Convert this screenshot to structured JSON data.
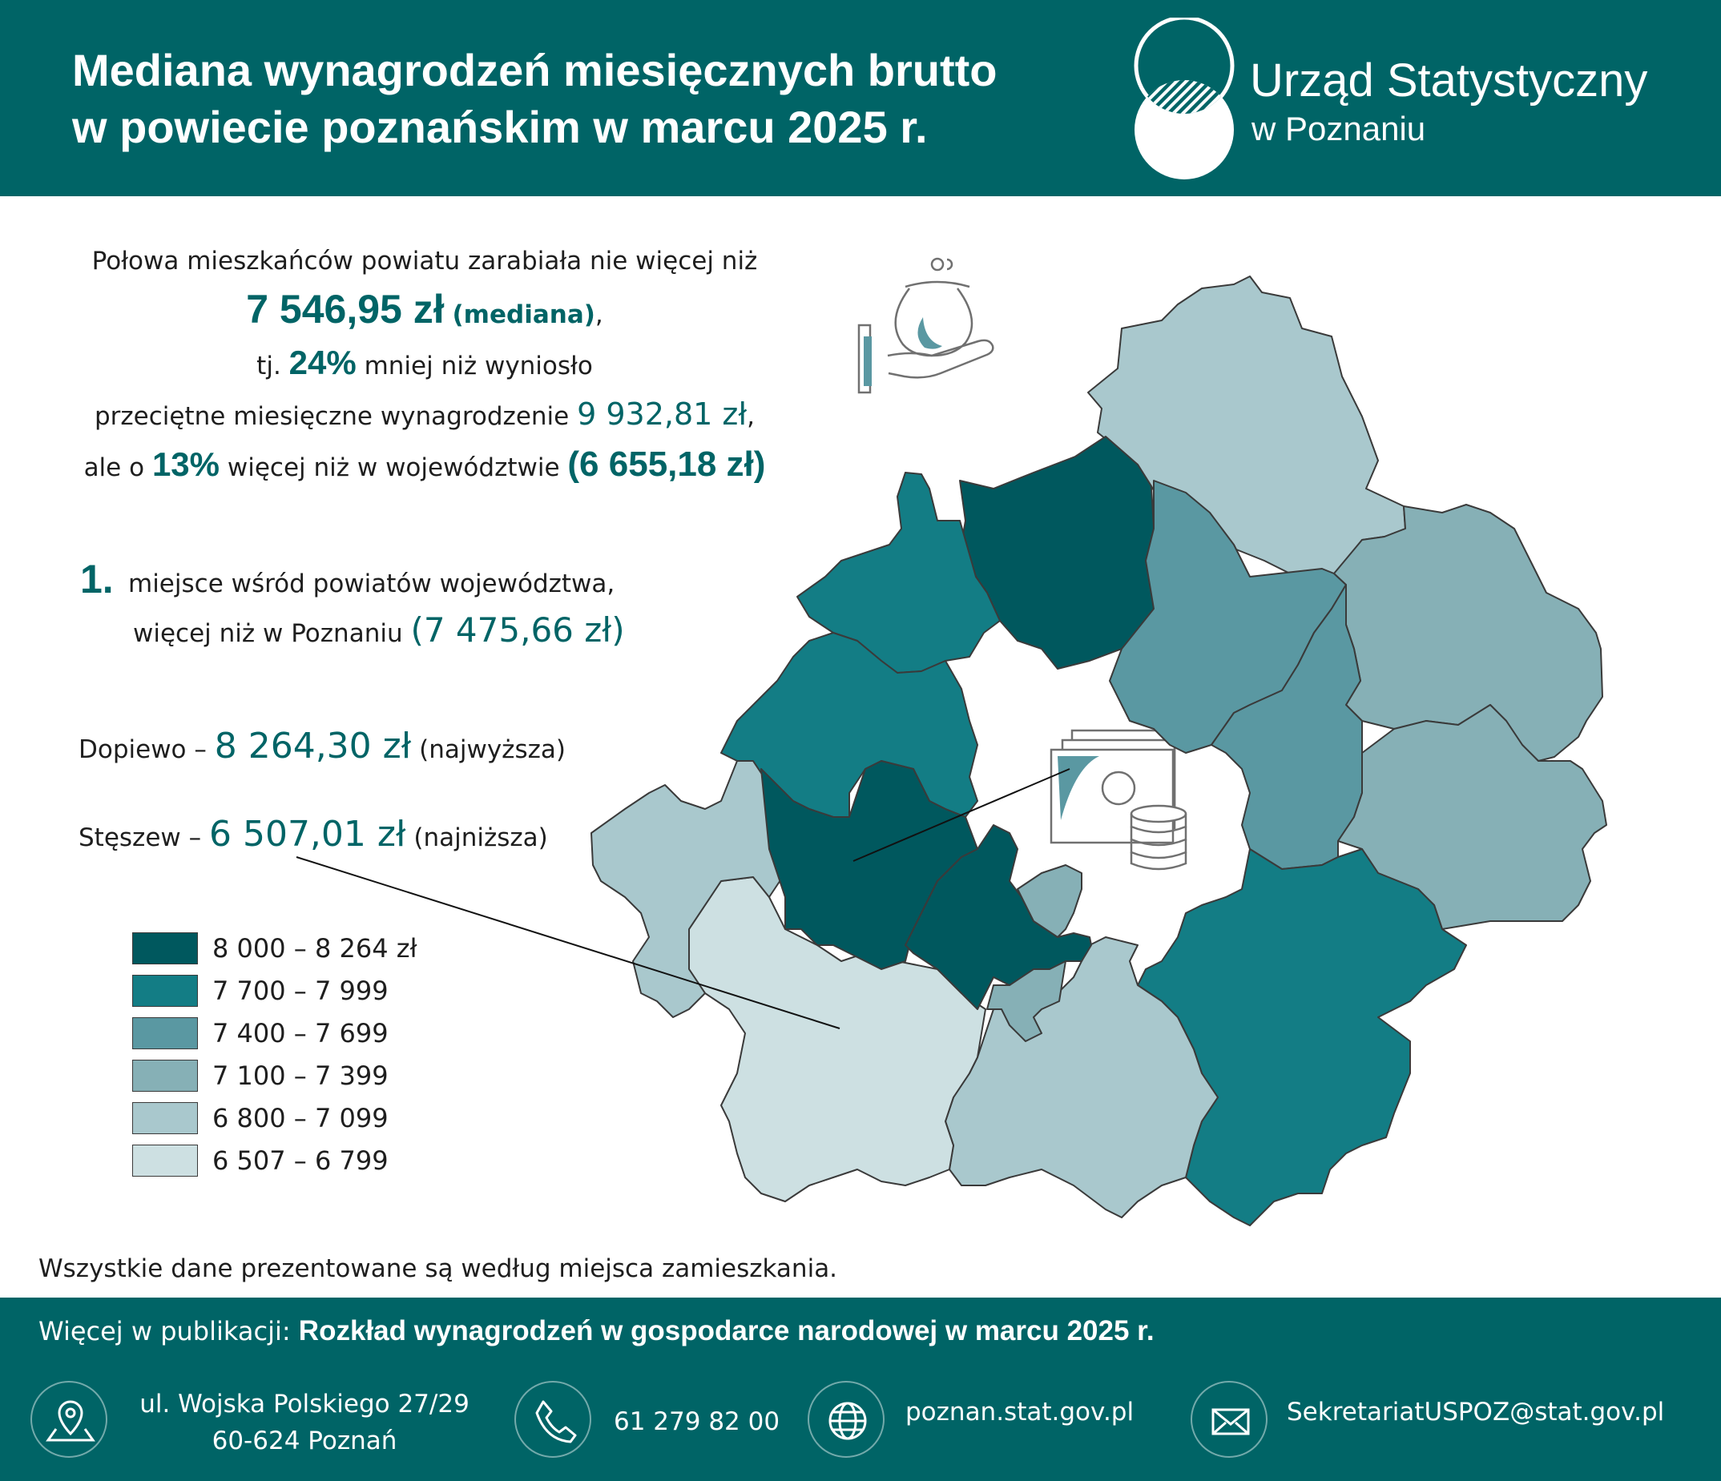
{
  "header": {
    "title_line1": "Mediana wynagrodzeń miesięcznych brutto",
    "title_line2": "w powiecie poznańskim w marcu 2025 r.",
    "org_name": "Urząd Statystyczny",
    "org_sub": "w Poznaniu"
  },
  "intro": {
    "line1": "Połowa mieszkańców powiatu zarabiała nie więcej niż",
    "median_value": "7 546,95 zł",
    "median_label": "(mediana)",
    "median_suffix": ",",
    "line3_pre": "tj.",
    "line3_pct": "24%",
    "line3_post": "mniej niż wyniosło",
    "line4_text": "przeciętne miesięczne wynagrodzenie",
    "line4_value": "9 932,81 zł",
    "line4_suffix": ",",
    "line5_pre": "ale o",
    "line5_pct": "13%",
    "line5_post": "więcej niż w województwie",
    "line5_value": "(6 655,18 zł)"
  },
  "rank": {
    "number": "1.",
    "line1": "miejsce wśród powiatów województwa,",
    "line2_text": "więcej niż w Poznaniu",
    "line2_value": "(7 475,66 zł)"
  },
  "callouts": {
    "highest": {
      "name": "Dopiewo –",
      "value": "8 264,30 zł",
      "note": "(najwyższa)"
    },
    "lowest": {
      "name": "Stęszew –",
      "value": "6 507,01 zł",
      "note": "(najniższa)"
    }
  },
  "legend": [
    {
      "label": "8 000 – 8 264 zł",
      "color": "#00585e"
    },
    {
      "label": "7 700 – 7 999",
      "color": "#137d85"
    },
    {
      "label": "7 400 – 7 699",
      "color": "#5a98a2"
    },
    {
      "label": "7 100 – 7 399",
      "color": "#86b0b6"
    },
    {
      "label": "6 800 – 7 099",
      "color": "#a9c8cd"
    },
    {
      "label": "6 507 – 6 799",
      "color": "#cde0e2"
    }
  ],
  "note": "Wszystkie dane prezentowane są według miejsca zamieszkania.",
  "footer": {
    "pub_label": "Więcej w publikacji:",
    "pub_title": "Rozkład wynagrodzeń w gospodarce narodowej w marcu 2025 r.",
    "address_line1": "ul. Wojska Polskiego 27/29",
    "address_line2": "60-624 Poznań",
    "phone": "61 279 82 00",
    "website": "poznan.stat.gov.pl",
    "email": "SekretariatUSPOZ@stat.gov.pl"
  },
  "icons": [
    "hand-coin-purse-icon",
    "documents-coins-icon",
    "location-pin-icon",
    "phone-icon",
    "globe-icon",
    "envelope-icon"
  ],
  "colors": {
    "primary": "#006466",
    "class_1": "#00585e",
    "class_2": "#137d85",
    "class_3": "#5a98a2",
    "class_4": "#86b0b6",
    "class_5": "#a9c8cd",
    "class_6": "#cde0e2"
  }
}
